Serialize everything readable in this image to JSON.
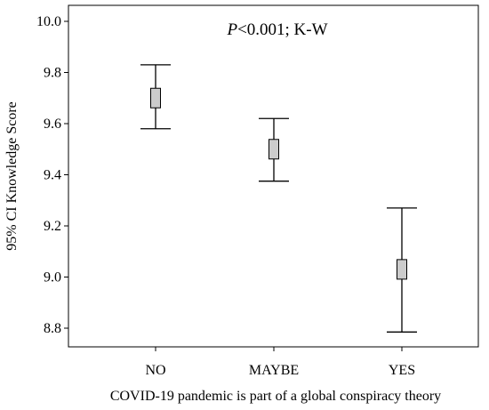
{
  "chart_data": {
    "type": "error-bar",
    "title": "",
    "xlabel": "COVID-19 pandemic is part of a global conspiracy theory",
    "ylabel": "95% CI Knowledge Score",
    "annotation": {
      "italic": "P",
      "text": "<0.001; K-W"
    },
    "categories": [
      "NO",
      "MAYBE",
      "YES"
    ],
    "points": [
      {
        "category": "NO",
        "mean": 9.7,
        "ci_lower": 9.58,
        "ci_upper": 9.83
      },
      {
        "category": "MAYBE",
        "mean": 9.5,
        "ci_lower": 9.375,
        "ci_upper": 9.62
      },
      {
        "category": "YES",
        "mean": 9.03,
        "ci_lower": 8.785,
        "ci_upper": 9.27
      }
    ],
    "ylim": [
      8.7,
      10.05
    ],
    "yticks": [
      "8.8",
      "9.0",
      "9.2",
      "9.4",
      "9.6",
      "9.8",
      "10.0"
    ],
    "grid": false,
    "legend": "none",
    "marker_color": "#cccccc",
    "line_color": "#000000"
  }
}
